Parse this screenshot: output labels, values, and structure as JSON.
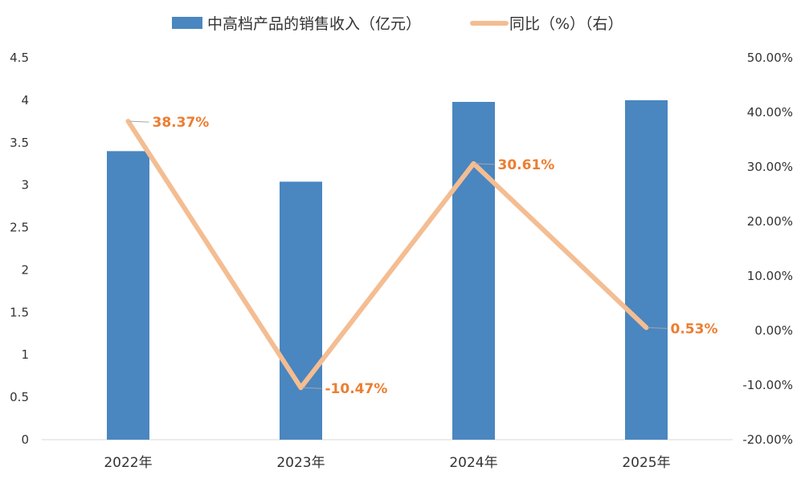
{
  "chart_data": {
    "type": "bar",
    "categories": [
      "2022年",
      "2023年",
      "2024年",
      "2025年"
    ],
    "series": [
      {
        "name": "中高档产品的销售收入（亿元）",
        "type": "bar",
        "axis": "left",
        "values": [
          3.4,
          3.04,
          3.98,
          4.0
        ],
        "color": "#4A86C0"
      },
      {
        "name": "同比（%）（右）",
        "type": "line",
        "axis": "right",
        "values": [
          38.37,
          -10.47,
          30.61,
          0.53
        ],
        "labels": [
          "38.37%",
          "-10.47%",
          "30.61%",
          "0.53%"
        ],
        "color": "#F4BD92",
        "label_color": "#ED7D31"
      }
    ],
    "left_axis": {
      "ylim": [
        0,
        4.5
      ],
      "ticks": [
        "0",
        "0.5",
        "1",
        "1.5",
        "2",
        "2.5",
        "3",
        "3.5",
        "4",
        "4.5"
      ],
      "tick_values": [
        0,
        0.5,
        1,
        1.5,
        2,
        2.5,
        3,
        3.5,
        4,
        4.5
      ]
    },
    "right_axis": {
      "ylim": [
        -20,
        50
      ],
      "ticks": [
        "-20.00%",
        "-10.00%",
        "0.00%",
        "10.00%",
        "20.00%",
        "30.00%",
        "40.00%",
        "50.00%"
      ],
      "tick_values": [
        -20,
        -10,
        0,
        10,
        20,
        30,
        40,
        50
      ]
    },
    "grid": false,
    "legend_position": "top"
  }
}
